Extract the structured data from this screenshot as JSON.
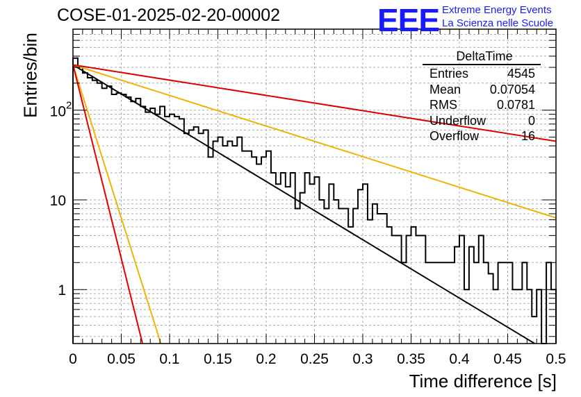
{
  "header": {
    "title": "COSE-01-2025-02-20-00002",
    "logo": "EEE",
    "logo_line1": "Extreme Energy Events",
    "logo_line2": "La Scienza nelle Scuole"
  },
  "stats_box": {
    "title": "DeltaTime",
    "rows": [
      {
        "label": "Entries",
        "value": "4545"
      },
      {
        "label": "Mean",
        "value": "0.07054"
      },
      {
        "label": "RMS",
        "value": "0.0781"
      },
      {
        "label": "Underflow",
        "value": "0"
      },
      {
        "label": "Overflow",
        "value": "16"
      }
    ]
  },
  "chart_data": {
    "type": "histogram",
    "title": "COSE-01-2025-02-20-00002",
    "xlabel": "Time difference [s]",
    "ylabel": "Entries/bin",
    "xlim": [
      0,
      0.5
    ],
    "ylim": [
      0.25,
      800
    ],
    "log_y": true,
    "grid": true,
    "x_ticks": [
      "0",
      "0.05",
      "0.1",
      "0.15",
      "0.2",
      "0.25",
      "0.3",
      "0.35",
      "0.4",
      "0.45",
      "0.5"
    ],
    "y_ticks": [
      "1",
      "10",
      "10^2"
    ],
    "bin_width": 0.005,
    "histogram_values": [
      380,
      300,
      260,
      230,
      215,
      200,
      175,
      185,
      150,
      155,
      150,
      140,
      125,
      135,
      110,
      95,
      105,
      90,
      110,
      85,
      90,
      85,
      80,
      55,
      60,
      65,
      55,
      60,
      30,
      45,
      50,
      40,
      45,
      40,
      50,
      35,
      35,
      30,
      25,
      30,
      35,
      20,
      15,
      20,
      14,
      20,
      8,
      12,
      20,
      15,
      18,
      10,
      8,
      15,
      10,
      8,
      8,
      5,
      8,
      13,
      15,
      6,
      9,
      7,
      7,
      5,
      4,
      4,
      2,
      4,
      5,
      4,
      4,
      2,
      2,
      2,
      2,
      2,
      2,
      3,
      4,
      1,
      3,
      2,
      4,
      2,
      1.5,
      1,
      2,
      2,
      2,
      1,
      1,
      2,
      1,
      0.5,
      1,
      0.25,
      2,
      1
    ],
    "fit_lines": [
      {
        "color": "#000000",
        "y0": 320,
        "y_end": 0.25,
        "x_end": 0.478
      },
      {
        "color": "#f0b400",
        "y0": 320,
        "y_end": 6.3,
        "x_end": 0.5
      },
      {
        "color": "#f0b400",
        "y0": 320,
        "y_end": 0.25,
        "x_end": 0.091
      },
      {
        "color": "#dd0000",
        "y0": 320,
        "y_end": 45,
        "x_end": 0.5
      },
      {
        "color": "#dd0000",
        "y0": 320,
        "y_end": 0.25,
        "x_end": 0.072
      }
    ]
  }
}
